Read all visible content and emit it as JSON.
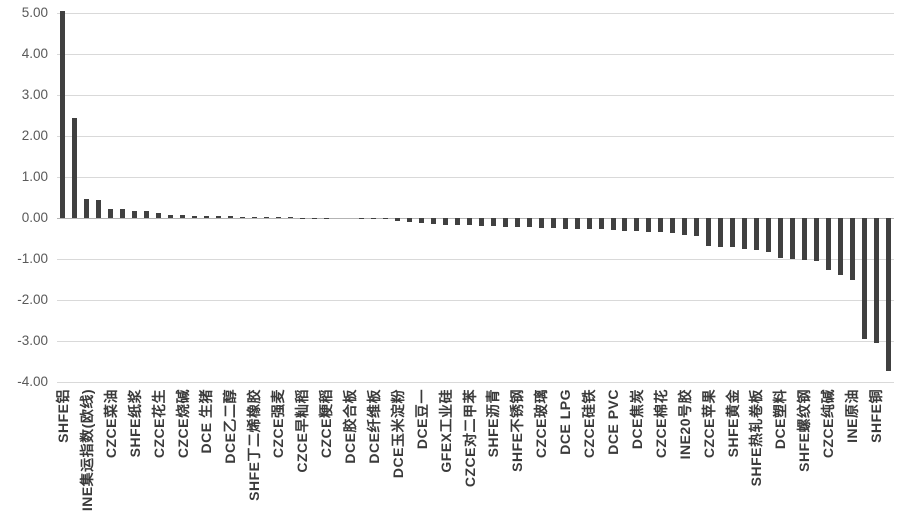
{
  "chart_data": {
    "type": "bar",
    "title": "",
    "xlabel": "",
    "ylabel": "",
    "ylim": [
      -4,
      5
    ],
    "ytick_step": 1,
    "ytick_labels": [
      "5.00",
      "4.00",
      "3.00",
      "2.00",
      "1.00",
      "0.00",
      "-1.00",
      "-2.00",
      "-3.00",
      "-4.00"
    ],
    "grid": true,
    "legend": false,
    "category_label_interval": 2,
    "bars": [
      {
        "label": "SHFE铝",
        "value": 5.05
      },
      {
        "label": "",
        "value": 2.45
      },
      {
        "label": "INE集运指数(欧线)",
        "value": 0.47
      },
      {
        "label": "",
        "value": 0.44
      },
      {
        "label": "CZCE菜油",
        "value": 0.22
      },
      {
        "label": "",
        "value": 0.21
      },
      {
        "label": "SHFE纸浆",
        "value": 0.17
      },
      {
        "label": "",
        "value": 0.16
      },
      {
        "label": "CZCE花生",
        "value": 0.12
      },
      {
        "label": "",
        "value": 0.08
      },
      {
        "label": "CZCE烧碱",
        "value": 0.07
      },
      {
        "label": "",
        "value": 0.05
      },
      {
        "label": "DCE 生猪",
        "value": 0.05
      },
      {
        "label": "",
        "value": 0.04
      },
      {
        "label": "DCE乙二醇",
        "value": 0.04
      },
      {
        "label": "",
        "value": 0.03
      },
      {
        "label": "SHFE丁二烯橡胶",
        "value": 0.03
      },
      {
        "label": "",
        "value": 0.03
      },
      {
        "label": "CZCE强麦",
        "value": 0.02
      },
      {
        "label": "",
        "value": 0.02
      },
      {
        "label": "CZCE早籼稻",
        "value": 0.01
      },
      {
        "label": "",
        "value": 0.01
      },
      {
        "label": "CZCE粳稻",
        "value": 0.01
      },
      {
        "label": "",
        "value": 0.0
      },
      {
        "label": "DCE胶合板",
        "value": 0.0
      },
      {
        "label": "",
        "value": -0.01
      },
      {
        "label": "DCE纤维板",
        "value": -0.01
      },
      {
        "label": "",
        "value": -0.02
      },
      {
        "label": "DCE玉米淀粉",
        "value": -0.08
      },
      {
        "label": "",
        "value": -0.1
      },
      {
        "label": "DCE豆一",
        "value": -0.13
      },
      {
        "label": "",
        "value": -0.15
      },
      {
        "label": "GFEX工业硅",
        "value": -0.16
      },
      {
        "label": "",
        "value": -0.17
      },
      {
        "label": "CZCE对二甲苯",
        "value": -0.18
      },
      {
        "label": "",
        "value": -0.19
      },
      {
        "label": "SHFE沥青",
        "value": -0.2
      },
      {
        "label": "",
        "value": -0.21
      },
      {
        "label": "SHFE不锈钢",
        "value": -0.22
      },
      {
        "label": "",
        "value": -0.23
      },
      {
        "label": "CZCE玻璃",
        "value": -0.24
      },
      {
        "label": "",
        "value": -0.25
      },
      {
        "label": "DCE LPG",
        "value": -0.26
      },
      {
        "label": "",
        "value": -0.27
      },
      {
        "label": "CZCE硅铁",
        "value": -0.27
      },
      {
        "label": "",
        "value": -0.28
      },
      {
        "label": "DCE PVC",
        "value": -0.29
      },
      {
        "label": "",
        "value": -0.31
      },
      {
        "label": "DCE焦炭",
        "value": -0.32
      },
      {
        "label": "",
        "value": -0.33
      },
      {
        "label": "CZCE棉花",
        "value": -0.34
      },
      {
        "label": "",
        "value": -0.36
      },
      {
        "label": "INE20号胶",
        "value": -0.41
      },
      {
        "label": "",
        "value": -0.43
      },
      {
        "label": "CZCE苹果",
        "value": -0.68
      },
      {
        "label": "",
        "value": -0.7
      },
      {
        "label": "SHFE黄金",
        "value": -0.71
      },
      {
        "label": "",
        "value": -0.75
      },
      {
        "label": "SHFE热轧卷板",
        "value": -0.77
      },
      {
        "label": "",
        "value": -0.84
      },
      {
        "label": "DCE塑料",
        "value": -0.98
      },
      {
        "label": "",
        "value": -1.0
      },
      {
        "label": "SHFE螺纹钢",
        "value": -1.02
      },
      {
        "label": "",
        "value": -1.05
      },
      {
        "label": "CZCE纯碱",
        "value": -1.26
      },
      {
        "label": "",
        "value": -1.38
      },
      {
        "label": "INE原油",
        "value": -1.5
      },
      {
        "label": "",
        "value": -2.96
      },
      {
        "label": "SHFE铜",
        "value": -3.06
      },
      {
        "label": "",
        "value": -3.73
      }
    ]
  },
  "style": {
    "bar_color": "#404040",
    "gridline_color": "#d9d9d9",
    "zero_line_color": "#b3b3b3",
    "y_label_color": "#595959",
    "x_label_color": "#3a3a3a",
    "background": "#ffffff"
  }
}
